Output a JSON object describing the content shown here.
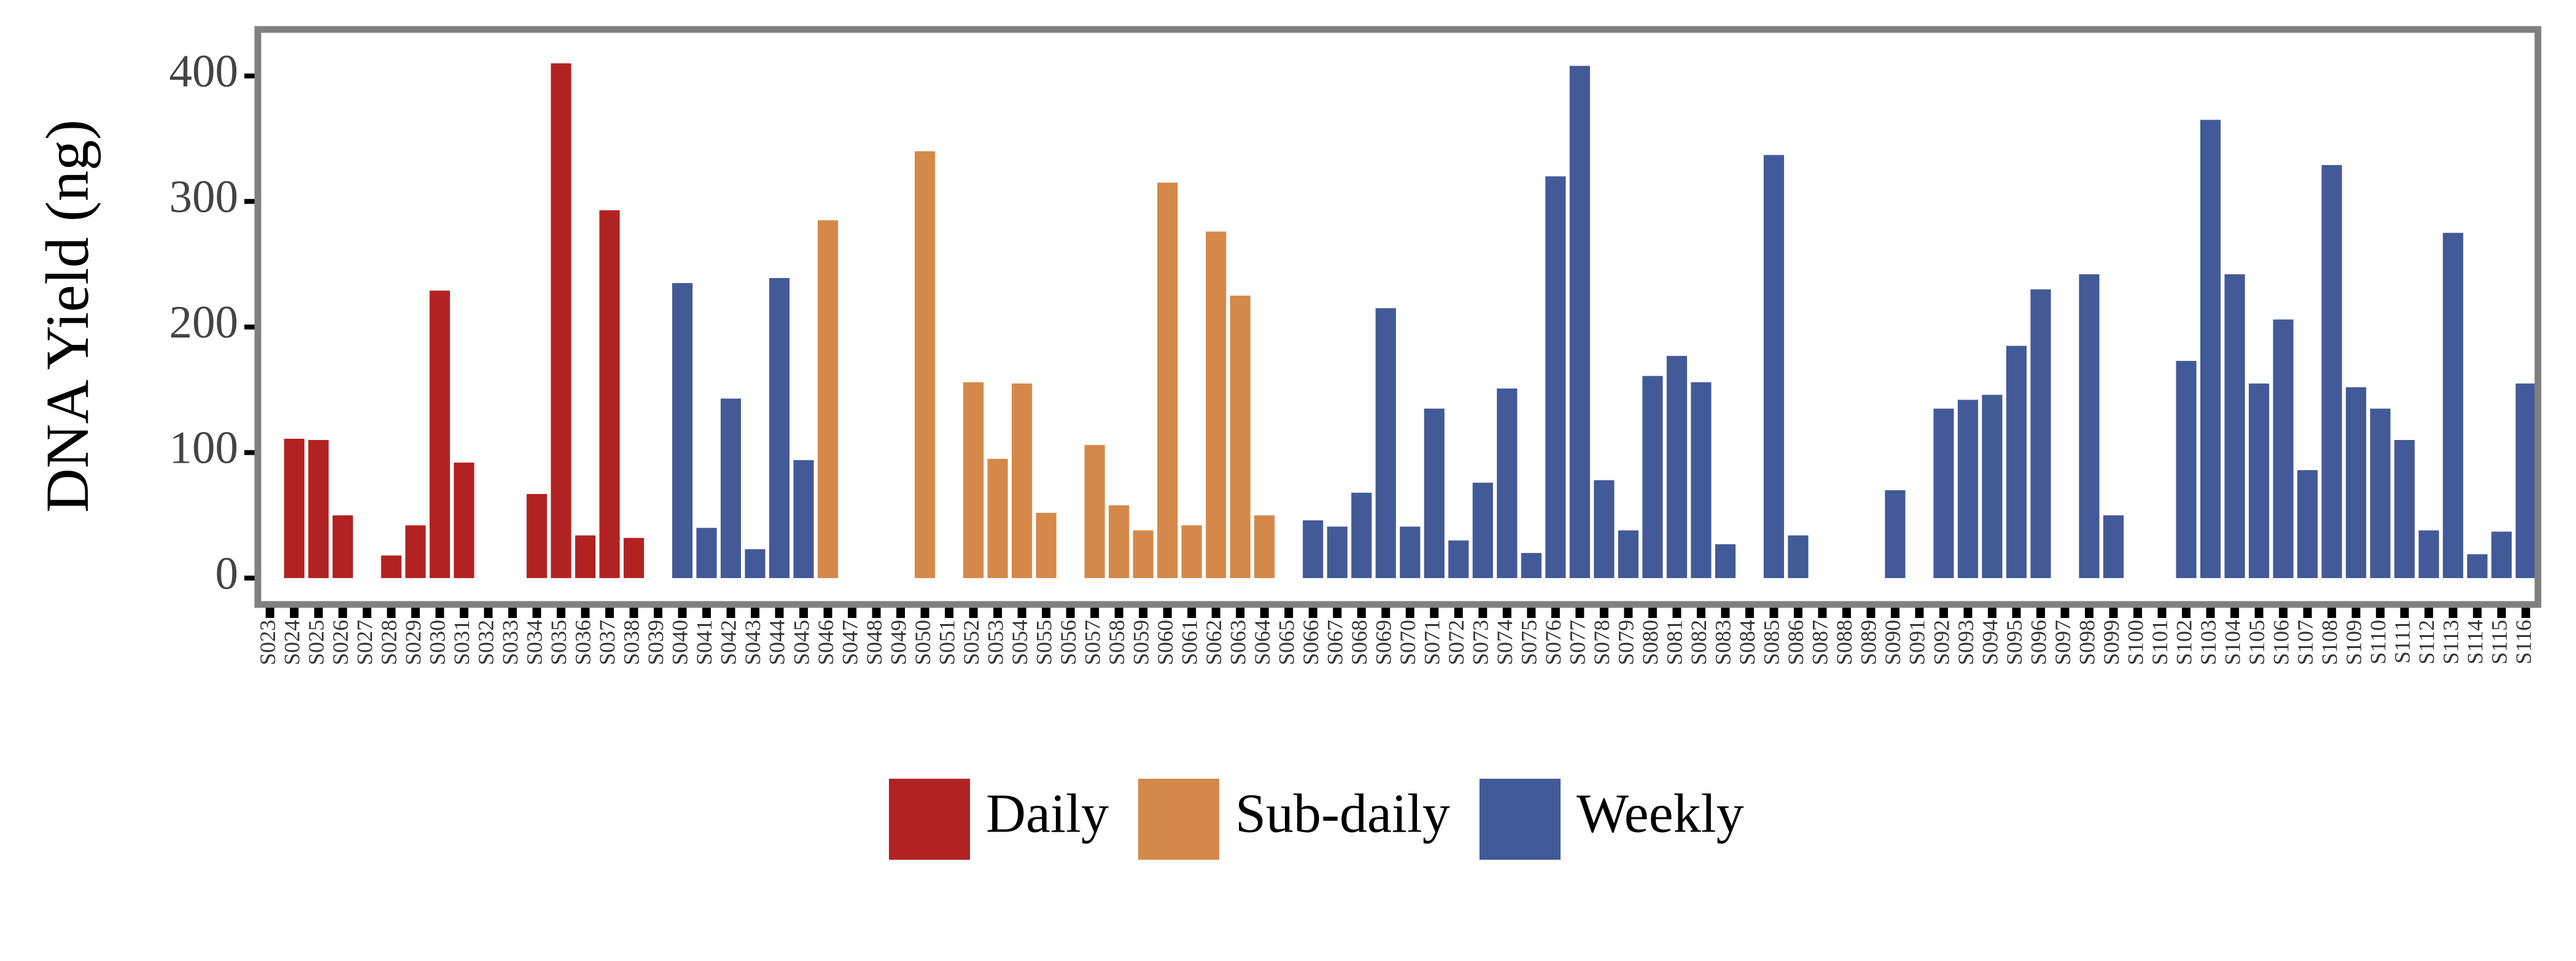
{
  "chart_data": {
    "type": "bar",
    "y_label": "DNA Yield (ng)",
    "categories": [
      "S023",
      "S024",
      "S025",
      "S026",
      "S027",
      "S028",
      "S029",
      "S030",
      "S031",
      "S032",
      "S033",
      "S034",
      "S035",
      "S036",
      "S037",
      "S038",
      "S039",
      "S040",
      "S041",
      "S042",
      "S043",
      "S044",
      "S045",
      "S046",
      "S047",
      "S048",
      "S049",
      "S050",
      "S051",
      "S052",
      "S053",
      "S054",
      "S055",
      "S056",
      "S057",
      "S058",
      "S059",
      "S060",
      "S061",
      "S062",
      "S063",
      "S064",
      "S065",
      "S066",
      "S067",
      "S068",
      "S069",
      "S070",
      "S071",
      "S072",
      "S073",
      "S074",
      "S075",
      "S076",
      "S077",
      "S078",
      "S079",
      "S080",
      "S081",
      "S082",
      "S083",
      "S084",
      "S085",
      "S086",
      "S087",
      "S088",
      "S089",
      "S090",
      "S091",
      "S092",
      "S093",
      "S094",
      "S095",
      "S096",
      "S097",
      "S098",
      "S099",
      "S100",
      "S101",
      "S102",
      "S103",
      "S104",
      "S105",
      "S106",
      "S107",
      "S108",
      "S109",
      "S110",
      "S111",
      "S112",
      "S113",
      "S114",
      "S115",
      "S116"
    ],
    "series": [
      {
        "name": "Daily",
        "color": "#b22222",
        "values": [
          null,
          111,
          110,
          50,
          null,
          18,
          42,
          229,
          92,
          null,
          null,
          67,
          410,
          34,
          293,
          32,
          null,
          null,
          null,
          null,
          null,
          null,
          null,
          null,
          null,
          null,
          null,
          null,
          null,
          null,
          null,
          null,
          null,
          null,
          null,
          null,
          null,
          null,
          null,
          null,
          null,
          null,
          null,
          null,
          null,
          null,
          null,
          null,
          null,
          null,
          null,
          null,
          null,
          null,
          null,
          null,
          null,
          null,
          null,
          null,
          null,
          null,
          null,
          null,
          null,
          null,
          null,
          null,
          null,
          null,
          null,
          null,
          null,
          null,
          null,
          null,
          null,
          null,
          null,
          null,
          null,
          null,
          null,
          null,
          null,
          null,
          null,
          null,
          null,
          null,
          null,
          null,
          null,
          null
        ]
      },
      {
        "name": "Sub-daily",
        "color": "#d4894a",
        "values": [
          null,
          null,
          null,
          null,
          null,
          null,
          null,
          null,
          null,
          null,
          null,
          null,
          null,
          null,
          null,
          null,
          null,
          null,
          null,
          null,
          null,
          null,
          null,
          285,
          null,
          null,
          null,
          340,
          null,
          156,
          95,
          155,
          52,
          null,
          106,
          58,
          38,
          315,
          42,
          276,
          225,
          50,
          null,
          null,
          null,
          null,
          null,
          null,
          null,
          null,
          null,
          null,
          null,
          null,
          null,
          null,
          null,
          null,
          null,
          null,
          null,
          null,
          null,
          null,
          null,
          null,
          null,
          null,
          null,
          null,
          null,
          null,
          null,
          null,
          null,
          null,
          null,
          null,
          null,
          null,
          null,
          null,
          null,
          null,
          null,
          null,
          null,
          null,
          null,
          null,
          null,
          null,
          null,
          null
        ]
      },
      {
        "name": "Weekly",
        "color": "#435a98",
        "values": [
          null,
          null,
          null,
          null,
          null,
          null,
          null,
          null,
          null,
          null,
          null,
          null,
          null,
          null,
          null,
          null,
          null,
          235,
          40,
          143,
          23,
          239,
          94,
          null,
          null,
          null,
          null,
          null,
          null,
          null,
          null,
          null,
          null,
          null,
          null,
          null,
          null,
          null,
          null,
          null,
          null,
          null,
          null,
          46,
          41,
          68,
          215,
          41,
          135,
          30,
          76,
          151,
          20,
          320,
          408,
          78,
          38,
          161,
          177,
          156,
          27,
          null,
          337,
          34,
          null,
          null,
          null,
          70,
          null,
          135,
          142,
          146,
          185,
          230,
          null,
          242,
          50,
          null,
          null,
          173,
          365,
          242,
          155,
          206,
          86,
          329,
          152,
          135,
          110,
          38,
          275,
          19,
          37,
          155
        ]
      }
    ],
    "ylim": [
      -21,
      437
    ],
    "yticks": [
      0,
      100,
      200,
      300,
      400
    ]
  }
}
